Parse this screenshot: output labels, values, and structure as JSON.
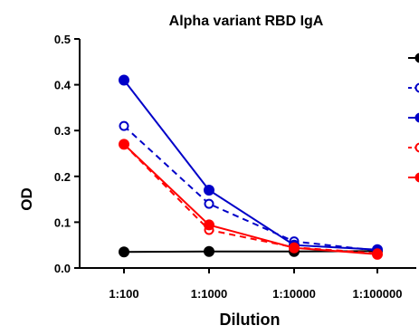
{
  "chart_data": {
    "type": "line",
    "title": "Alpha variant RBD IgA",
    "xlabel": "Dilution",
    "ylabel": "OD",
    "categories": [
      "1:100",
      "1:1000",
      "1:10000",
      "1:100000"
    ],
    "ylim": [
      0,
      0.5
    ],
    "yticks": [
      "0.0",
      "0.1",
      "0.2",
      "0.3",
      "0.4",
      "0.5"
    ],
    "grid": false,
    "legend": "right (cut off)",
    "series": [
      {
        "values": [
          0.035,
          0.036,
          0.036,
          0.037
        ],
        "color": "#000000",
        "dash": false,
        "marker": "filled-circle"
      },
      {
        "values": [
          0.31,
          0.14,
          0.058,
          0.038
        ],
        "color": "#0000c8",
        "dash": true,
        "marker": "open-circle"
      },
      {
        "values": [
          0.41,
          0.17,
          0.05,
          0.04
        ],
        "color": "#0000c8",
        "dash": false,
        "marker": "filled-circle"
      },
      {
        "values": [
          0.27,
          0.083,
          0.045,
          0.032
        ],
        "color": "#ff0000",
        "dash": true,
        "marker": "open-circle"
      },
      {
        "values": [
          0.27,
          0.094,
          0.044,
          0.03
        ],
        "color": "#ff0000",
        "dash": false,
        "marker": "filled-circle"
      }
    ]
  }
}
